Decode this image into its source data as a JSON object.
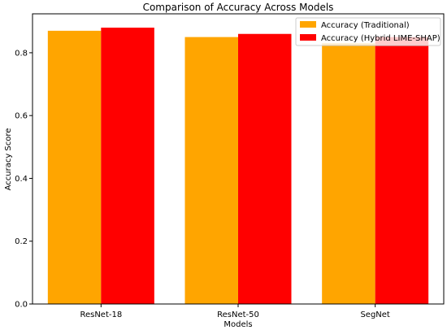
{
  "chart_data": {
    "type": "bar",
    "title": "Comparison of Accuracy Across Models",
    "xlabel": "Models",
    "ylabel": "Accuracy Score",
    "categories": [
      "ResNet-18",
      "ResNet-50",
      "SegNet"
    ],
    "series": [
      {
        "name": "Accuracy (Traditional)",
        "values": [
          0.87,
          0.85,
          0.83
        ],
        "color": "#FFA500"
      },
      {
        "name": "Accuracy (Hybrid LIME-SHAP)",
        "values": [
          0.88,
          0.86,
          0.85
        ],
        "color": "#FF0000"
      }
    ],
    "ylim": [
      0,
      0.924
    ],
    "yticks": [
      0.0,
      0.2,
      0.4,
      0.6,
      0.8
    ],
    "ytick_labels": [
      "0.0",
      "0.2",
      "0.4",
      "0.6",
      "0.8"
    ],
    "grid": false,
    "legend_position": "top-right"
  }
}
